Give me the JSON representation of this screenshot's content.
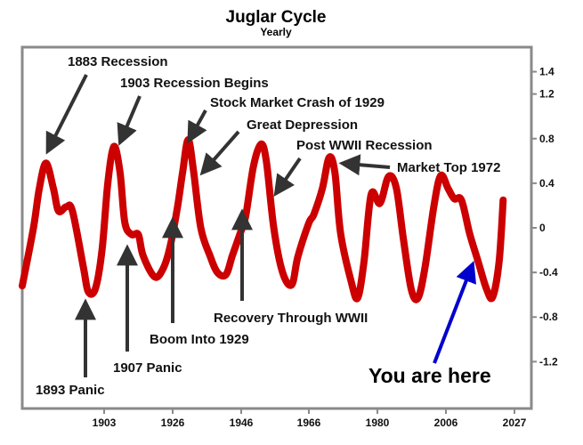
{
  "chart_data": {
    "type": "line",
    "title": "Juglar Cycle",
    "subtitle": "Yearly",
    "xlabel": "",
    "ylabel": "",
    "x_ticks": [
      "1903",
      "1926",
      "1946",
      "1966",
      "1980",
      "2006",
      "2027"
    ],
    "y_ticks": [
      "1.4",
      "1.2",
      "0.8",
      "0.4",
      "0",
      "-0.4",
      "-0.8",
      "-1.2"
    ],
    "ylim": [
      -1.62,
      1.62
    ],
    "y_axis_side": "right",
    "grid": false,
    "colors": {
      "series": "#cc0000",
      "arrow": "#333333",
      "here_arrow": "#0000cc"
    },
    "series": [
      {
        "points": [
          [
            1877.0,
            -0.52
          ],
          [
            1880.3,
            0.0
          ],
          [
            1882.0,
            0.35
          ],
          [
            1884.0,
            0.58
          ],
          [
            1886.2,
            0.35
          ],
          [
            1887.7,
            0.15
          ],
          [
            1890.0,
            0.19
          ],
          [
            1891.8,
            0.15
          ],
          [
            1895.0,
            -0.35
          ],
          [
            1896.4,
            -0.57
          ],
          [
            1898.5,
            -0.55
          ],
          [
            1900.5,
            -0.2
          ],
          [
            1902.2,
            0.4
          ],
          [
            1904.0,
            0.73
          ],
          [
            1905.8,
            0.5
          ],
          [
            1907.2,
            0.05
          ],
          [
            1909.2,
            -0.06
          ],
          [
            1911.2,
            -0.06
          ],
          [
            1912.6,
            -0.25
          ],
          [
            1916.0,
            -0.44
          ],
          [
            1918.6,
            -0.36
          ],
          [
            1920.7,
            -0.15
          ],
          [
            1922.8,
            0.2
          ],
          [
            1924.3,
            0.51
          ],
          [
            1925.9,
            0.79
          ],
          [
            1927.5,
            0.5
          ],
          [
            1929.6,
            0.0
          ],
          [
            1932.3,
            -0.25
          ],
          [
            1934.5,
            -0.4
          ],
          [
            1937.0,
            -0.42
          ],
          [
            1938.9,
            -0.25
          ],
          [
            1941.2,
            -0.05
          ],
          [
            1942.8,
            0.1
          ],
          [
            1945.1,
            0.55
          ],
          [
            1947.3,
            0.75
          ],
          [
            1948.9,
            0.6
          ],
          [
            1951.1,
            0.0
          ],
          [
            1953.7,
            -0.4
          ],
          [
            1956.4,
            -0.51
          ],
          [
            1958.2,
            -0.26
          ],
          [
            1961.4,
            0.04
          ],
          [
            1962.9,
            0.12
          ],
          [
            1965.4,
            0.35
          ],
          [
            1967.4,
            0.63
          ],
          [
            1969.1,
            0.5
          ],
          [
            1970.8,
            -0.05
          ],
          [
            1973.9,
            -0.48
          ],
          [
            1975.8,
            -0.63
          ],
          [
            1977.7,
            -0.3
          ],
          [
            1979.8,
            0.3
          ],
          [
            1982.4,
            0.22
          ],
          [
            1984.9,
            0.46
          ],
          [
            1987.2,
            0.36
          ],
          [
            1989.3,
            -0.1
          ],
          [
            1991.6,
            -0.55
          ],
          [
            1993.6,
            -0.63
          ],
          [
            1995.7,
            -0.35
          ],
          [
            1998.3,
            0.2
          ],
          [
            2000.3,
            0.47
          ],
          [
            2002.5,
            0.35
          ],
          [
            2004.3,
            0.26
          ],
          [
            2006.4,
            0.25
          ],
          [
            2008.8,
            -0.05
          ],
          [
            2011.3,
            -0.3
          ],
          [
            2013.8,
            -0.55
          ],
          [
            2015.6,
            -0.62
          ],
          [
            2017.5,
            -0.3
          ],
          [
            2018.7,
            0.25
          ]
        ]
      }
    ],
    "annotations": [
      {
        "text": "1883 Recession",
        "position": "above"
      },
      {
        "text": "1903 Recession Begins",
        "position": "above"
      },
      {
        "text": "Stock Market Crash of 1929",
        "position": "above"
      },
      {
        "text": "Great Depression",
        "position": "above"
      },
      {
        "text": "Post WWII Recession",
        "position": "above"
      },
      {
        "text": "Market Top 1972",
        "position": "right"
      },
      {
        "text": "1893 Panic",
        "position": "below"
      },
      {
        "text": "1907 Panic",
        "position": "below"
      },
      {
        "text": "Boom Into 1929",
        "position": "below"
      },
      {
        "text": "Recovery Through WWII",
        "position": "below"
      },
      {
        "text": "You are here",
        "position": "below-right"
      }
    ]
  }
}
